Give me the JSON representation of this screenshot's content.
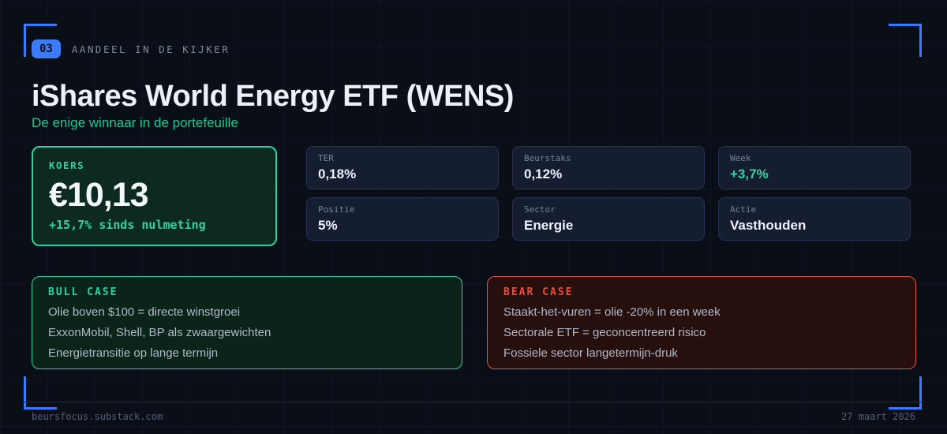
{
  "page": {
    "badge": "03",
    "kicker": "AANDEEL IN DE KIJKER",
    "title": "iShares World Energy ETF (WENS)",
    "subtitle": "De enige winnaar in de portefeuille"
  },
  "price_card": {
    "label": "KOERS",
    "value": "€10,13",
    "change": "+15,7% sinds nulmeting"
  },
  "stats": [
    {
      "label": "TER",
      "value": "0,18%",
      "highlight": false
    },
    {
      "label": "Beurstaks",
      "value": "0,12%",
      "highlight": false
    },
    {
      "label": "Week",
      "value": "+3,7%",
      "highlight": true
    },
    {
      "label": "Positie",
      "value": "5%",
      "highlight": false
    },
    {
      "label": "Sector",
      "value": "Energie",
      "highlight": false
    },
    {
      "label": "Actie",
      "value": "Vasthouden",
      "highlight": false
    }
  ],
  "bull_case": {
    "title": "BULL CASE",
    "items": [
      "Olie boven $100 = directe winstgroei",
      "ExxonMobil, Shell, BP als zwaargewichten",
      "Energietransitie op lange termijn"
    ]
  },
  "bear_case": {
    "title": "BEAR CASE",
    "items": [
      "Staakt-het-vuren = olie -20% in een week",
      "Sectorale ETF = geconcentreerd risico",
      "Fossiele sector langetermijn-druk"
    ]
  },
  "footer": {
    "source": "beursfocus.substack.com",
    "date": "27 maart 2026"
  },
  "colors": {
    "accent_blue": "#3b7bf8",
    "accent_green": "#2ed3a0",
    "accent_red": "#e2544a",
    "background": "#0a0e17"
  }
}
